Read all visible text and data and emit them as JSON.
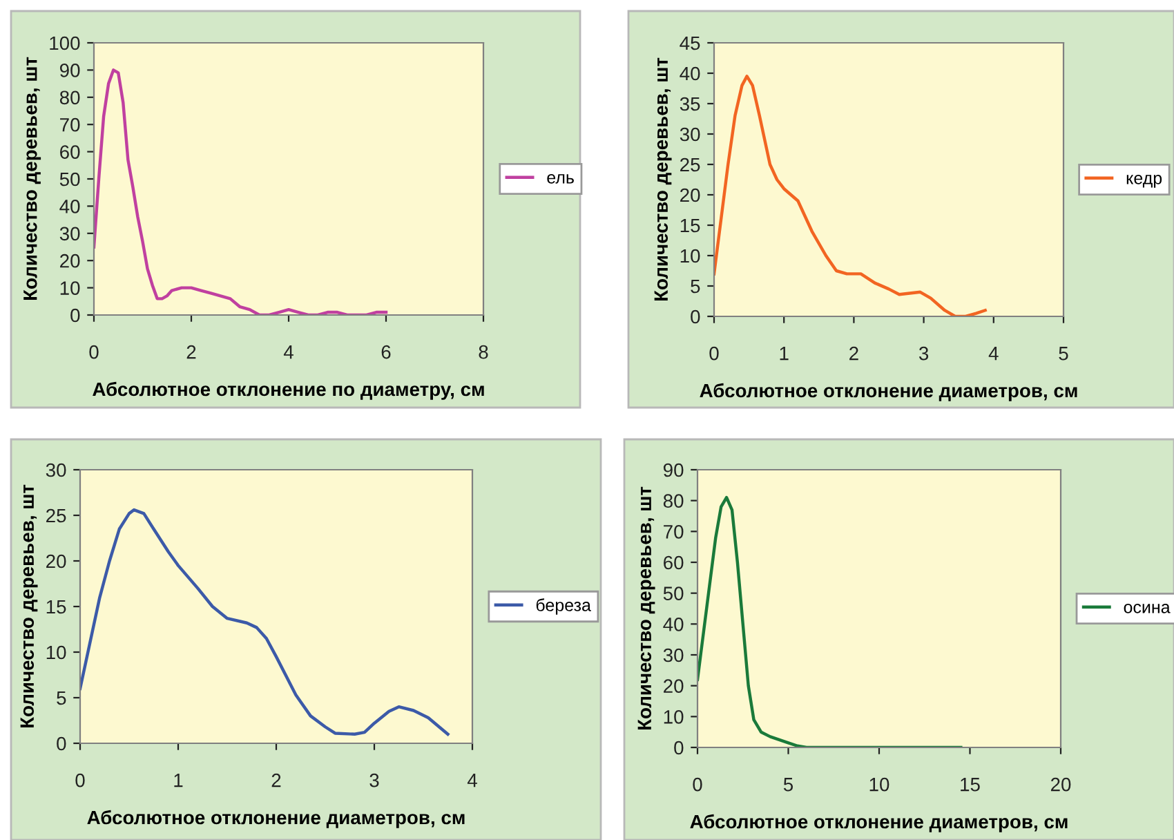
{
  "chart_data": [
    {
      "type": "line",
      "xlabel": "Абсолютное отклонение по диаметру, см",
      "ylabel": "Количество деревьев, шт",
      "xlim": [
        0,
        8
      ],
      "ylim": [
        0,
        100
      ],
      "xticks": [
        0,
        2,
        4,
        6,
        8
      ],
      "yticks": [
        0,
        10,
        20,
        30,
        40,
        50,
        60,
        70,
        80,
        90,
        100
      ],
      "legend": "right",
      "grid": false,
      "marker": "none",
      "series": [
        {
          "name": "ель",
          "color": "#c040a0",
          "x": [
            0,
            0.1,
            0.2,
            0.3,
            0.4,
            0.5,
            0.6,
            0.7,
            0.8,
            0.9,
            1.0,
            1.1,
            1.2,
            1.3,
            1.4,
            1.5,
            1.6,
            1.8,
            2.0,
            2.2,
            2.4,
            2.6,
            2.8,
            3.0,
            3.2,
            3.4,
            3.6,
            3.8,
            4.0,
            4.2,
            4.4,
            4.6,
            4.8,
            5.0,
            5.2,
            5.4,
            5.6,
            5.8,
            6.0
          ],
          "values": [
            25,
            50,
            73,
            85,
            90,
            89,
            78,
            57,
            47,
            36,
            27,
            17,
            11,
            6,
            6,
            7,
            9,
            10,
            10,
            9,
            8,
            7,
            6,
            3,
            2,
            0,
            0,
            1,
            2,
            1,
            0,
            0,
            1,
            1,
            0,
            0,
            0,
            1,
            1
          ]
        }
      ]
    },
    {
      "type": "line",
      "xlabel": "Абсолютное отклонение диаметров, см",
      "ylabel": "Количество деревьев, шт",
      "xlim": [
        0,
        5
      ],
      "ylim": [
        0,
        45
      ],
      "xticks": [
        0,
        1,
        2,
        3,
        4,
        5
      ],
      "yticks": [
        0,
        5,
        10,
        15,
        20,
        25,
        30,
        35,
        40,
        45
      ],
      "legend": "right",
      "grid": false,
      "marker": "none",
      "series": [
        {
          "name": "кедр",
          "color": "#f26522",
          "x": [
            0,
            0.1,
            0.2,
            0.3,
            0.4,
            0.47,
            0.55,
            0.65,
            0.8,
            0.9,
            1.0,
            1.2,
            1.4,
            1.6,
            1.75,
            1.9,
            2.1,
            2.3,
            2.5,
            2.65,
            2.8,
            2.95,
            3.1,
            3.3,
            3.45,
            3.6,
            3.75,
            3.88
          ],
          "values": [
            7,
            16,
            25,
            33,
            38,
            39.5,
            38,
            33,
            25,
            22.5,
            21,
            19,
            14,
            10,
            7.5,
            7,
            7,
            5.5,
            4.5,
            3.6,
            3.8,
            4,
            3,
            1,
            0,
            0,
            0.5,
            1
          ]
        }
      ]
    },
    {
      "type": "line",
      "xlabel": "Абсолютное отклонение диаметров, см",
      "ylabel": "Количество деревьев, шт",
      "xlim": [
        0,
        4
      ],
      "ylim": [
        0,
        30
      ],
      "xticks": [
        0,
        1,
        2,
        3,
        4
      ],
      "yticks": [
        0,
        5,
        10,
        15,
        20,
        25,
        30
      ],
      "legend": "right",
      "grid": false,
      "marker": "none",
      "series": [
        {
          "name": "береза",
          "color": "#3c5aa8",
          "x": [
            0,
            0.1,
            0.2,
            0.3,
            0.4,
            0.5,
            0.55,
            0.65,
            0.75,
            0.9,
            1.0,
            1.2,
            1.35,
            1.5,
            1.7,
            1.8,
            1.9,
            2.0,
            2.2,
            2.35,
            2.5,
            2.6,
            2.8,
            2.9,
            3.0,
            3.15,
            3.25,
            3.4,
            3.55,
            3.75
          ],
          "values": [
            6,
            11,
            16,
            20,
            23.5,
            25.2,
            25.6,
            25.2,
            23.5,
            21,
            19.5,
            17,
            15,
            13.7,
            13.2,
            12.7,
            11.5,
            9.5,
            5.3,
            3,
            1.8,
            1.1,
            1,
            1.2,
            2.2,
            3.5,
            4,
            3.6,
            2.8,
            1
          ]
        }
      ]
    },
    {
      "type": "line",
      "xlabel": "Абсолютное отклонение диаметров, см",
      "ylabel": "Количество деревьев, шт",
      "xlim": [
        0,
        20
      ],
      "ylim": [
        0,
        90
      ],
      "xticks": [
        0,
        5,
        10,
        15,
        20
      ],
      "yticks": [
        0,
        10,
        20,
        30,
        40,
        50,
        60,
        70,
        80,
        90
      ],
      "legend": "right",
      "grid": false,
      "marker": "none",
      "series": [
        {
          "name": "осина",
          "color": "#1a7a3a",
          "x": [
            0,
            0.5,
            1.0,
            1.3,
            1.6,
            1.9,
            2.2,
            2.5,
            2.8,
            3.1,
            3.5,
            4,
            4.5,
            5,
            5.5,
            6,
            8,
            10,
            12,
            14.5
          ],
          "values": [
            22,
            45,
            68,
            78,
            81,
            77,
            60,
            40,
            20,
            9,
            5,
            3.5,
            2.5,
            1.5,
            0.5,
            0,
            0,
            0,
            0,
            0
          ]
        }
      ]
    }
  ]
}
